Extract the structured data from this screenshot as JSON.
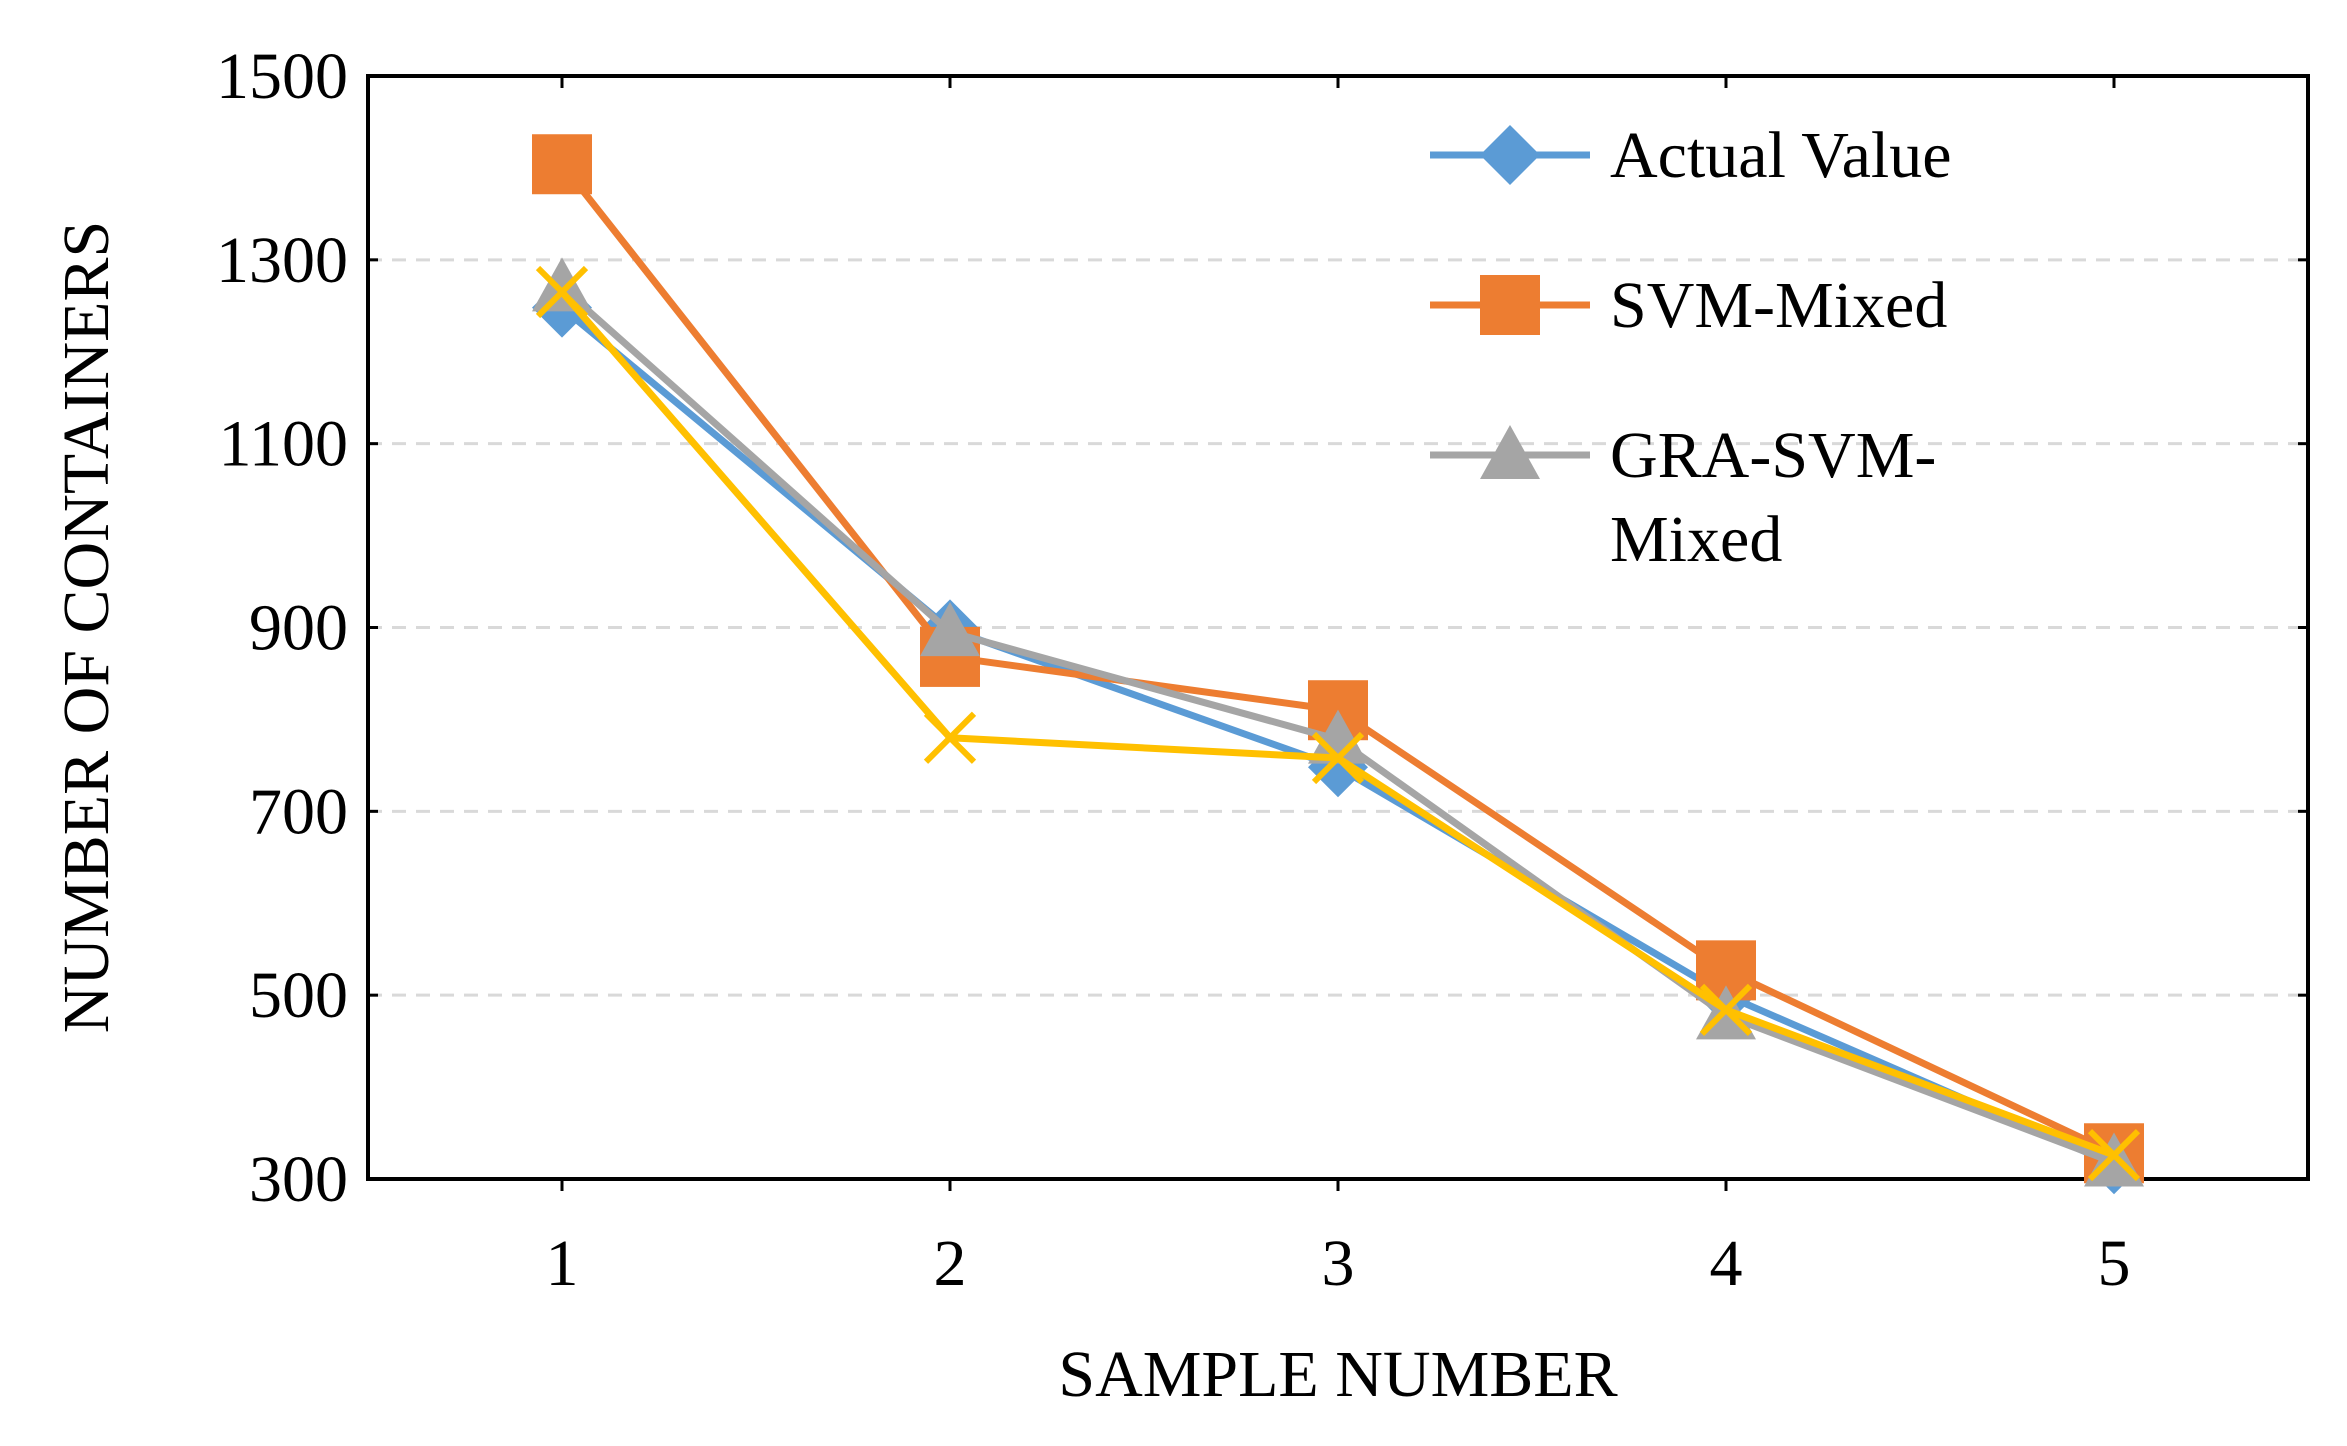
{
  "chart_data": {
    "type": "line",
    "title": "",
    "xlabel": "SAMPLE NUMBER",
    "ylabel": "NUMBER OF CONTAINERS",
    "x": [
      1,
      2,
      3,
      4,
      5
    ],
    "x_tick_labels": [
      "1",
      "2",
      "3",
      "4",
      "5"
    ],
    "ylim": [
      300,
      1500
    ],
    "y_ticks": [
      300,
      500,
      700,
      900,
      1100,
      1300,
      1500
    ],
    "y_tick_labels": [
      "300",
      "500",
      "700",
      "900",
      "1100",
      "1300",
      "1500"
    ],
    "grid": "horizontal dashed",
    "legend_position": "top-right (inside plot)",
    "series": [
      {
        "name": "Actual Value",
        "legend_label": [
          "Actual Value"
        ],
        "color": "#5B9BD5",
        "marker": "diamond",
        "values": [
          1248,
          898,
          748,
          500,
          316
        ]
      },
      {
        "name": "SVM-Mixed",
        "legend_label": [
          "SVM-Mixed"
        ],
        "color": "#ED7D31",
        "marker": "square",
        "values": [
          1404,
          868,
          810,
          527,
          328
        ]
      },
      {
        "name": "GRA-SVM-Mixed",
        "legend_label": [
          "GRA-SVM-",
          "Mixed"
        ],
        "color": "#A5A5A5",
        "marker": "triangle",
        "values": [
          1270,
          895,
          778,
          478,
          318
        ]
      },
      {
        "name": "",
        "legend_label": [],
        "color": "#FFC000",
        "marker": "x",
        "values": [
          1265,
          780,
          758,
          484,
          326
        ]
      }
    ]
  }
}
